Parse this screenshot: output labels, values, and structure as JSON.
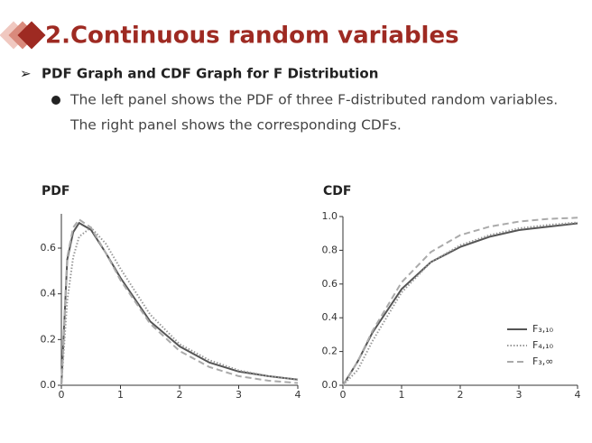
{
  "header": {
    "title": "2.Continuous random variables",
    "subtitle": "PDF Graph and CDF Graph for F Distribution",
    "bullet_lines": [
      "The left panel shows the PDF of three F-distributed random variables.",
      "The right panel shows the corresponding CDFs."
    ]
  },
  "chart_data": [
    {
      "type": "line",
      "title": "PDF",
      "x": [
        0,
        0.1,
        0.2,
        0.3,
        0.5,
        0.75,
        1,
        1.5,
        2,
        2.5,
        3,
        3.5,
        4
      ],
      "series": [
        {
          "name": "F₃,₁₀",
          "color": "#555555",
          "dash": "solid",
          "values": [
            0,
            0.55,
            0.67,
            0.71,
            0.68,
            0.58,
            0.47,
            0.28,
            0.17,
            0.1,
            0.06,
            0.04,
            0.025
          ]
        },
        {
          "name": "F₄,₁₀",
          "color": "#999999",
          "dash": "dotted",
          "values": [
            0,
            0.37,
            0.56,
            0.65,
            0.69,
            0.62,
            0.51,
            0.31,
            0.18,
            0.11,
            0.065,
            0.04,
            0.025
          ]
        },
        {
          "name": "F₃,∞",
          "color": "#aaaaaa",
          "dash": "dashed",
          "values": [
            0,
            0.56,
            0.69,
            0.725,
            0.69,
            0.58,
            0.46,
            0.27,
            0.15,
            0.08,
            0.04,
            0.02,
            0.01
          ]
        }
      ],
      "xlim": [
        0,
        4
      ],
      "ylim": [
        0,
        0.75
      ],
      "xticks": [
        0,
        1,
        2,
        3,
        4
      ],
      "yticks": [
        {
          "value": 0,
          "label": "0.0"
        },
        {
          "value": 0.2,
          "label": "0.2"
        },
        {
          "value": 0.4,
          "label": "0.4"
        },
        {
          "value": 0.6,
          "label": "0.6"
        }
      ]
    },
    {
      "type": "line",
      "title": "CDF",
      "x": [
        0,
        0.25,
        0.5,
        1,
        1.5,
        2,
        2.5,
        3,
        3.5,
        4
      ],
      "series": [
        {
          "name": "F₃,₁₀",
          "color": "#555555",
          "dash": "solid",
          "values": [
            0,
            0.14,
            0.31,
            0.57,
            0.73,
            0.82,
            0.88,
            0.92,
            0.94,
            0.96
          ]
        },
        {
          "name": "F₄,₁₀",
          "color": "#999999",
          "dash": "dotted",
          "values": [
            0,
            0.09,
            0.26,
            0.55,
            0.73,
            0.83,
            0.89,
            0.93,
            0.95,
            0.965
          ]
        },
        {
          "name": "F₃,∞",
          "color": "#aaaaaa",
          "dash": "dashed",
          "values": [
            0,
            0.14,
            0.32,
            0.61,
            0.79,
            0.89,
            0.94,
            0.97,
            0.986,
            0.993
          ]
        }
      ],
      "xlim": [
        0,
        4
      ],
      "ylim": [
        0,
        1
      ],
      "xticks": [
        0,
        1,
        2,
        3,
        4
      ],
      "yticks": [
        {
          "value": 0,
          "label": "0.0"
        },
        {
          "value": 0.2,
          "label": "0.2"
        },
        {
          "value": 0.4,
          "label": "0.4"
        },
        {
          "value": 0.6,
          "label": "0.6"
        },
        {
          "value": 0.8,
          "label": "0.8"
        },
        {
          "value": 1,
          "label": "1.0"
        }
      ],
      "legend": "lower right"
    }
  ]
}
